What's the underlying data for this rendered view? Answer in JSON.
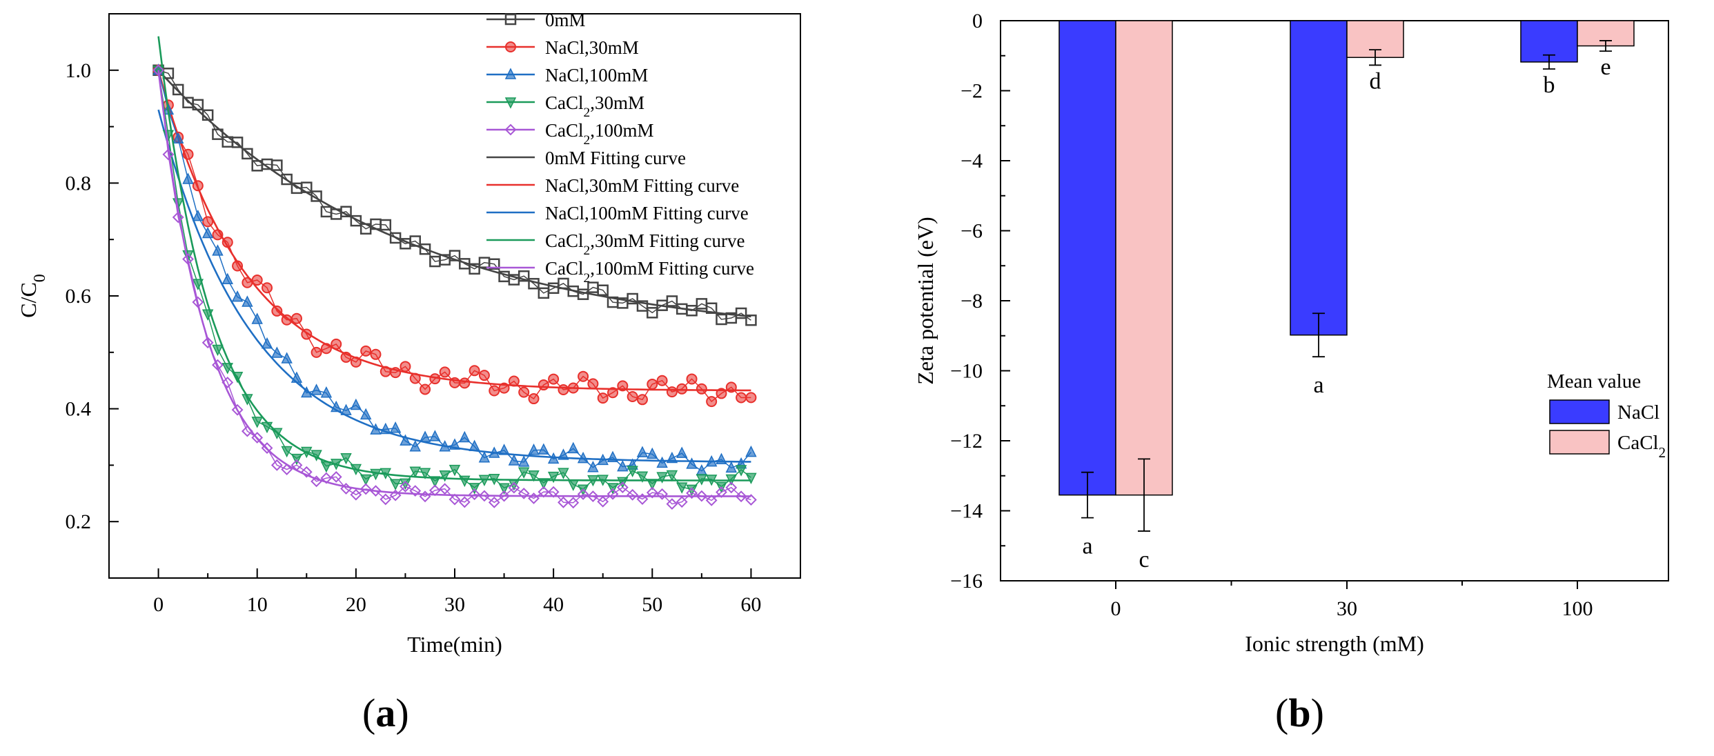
{
  "panels": {
    "a_label_open": "(",
    "a_label_letter": "a",
    "a_label_close": ")",
    "b_label_open": "(",
    "b_label_letter": "b",
    "b_label_close": ")"
  },
  "chart_data": [
    {
      "type": "scatter",
      "id": "a",
      "title": "",
      "xlabel": "Time(min)",
      "ylabel": "C/C0",
      "xlim": [
        -5,
        65
      ],
      "ylim": [
        0.1,
        1.1
      ],
      "xticks": [
        0,
        10,
        20,
        30,
        40,
        50,
        60
      ],
      "yticks": [
        0.2,
        0.4,
        0.6,
        0.8,
        1.0
      ],
      "ytick_labels": [
        "0.2",
        "0.4",
        "0.6",
        "0.8",
        "1.0"
      ],
      "series": [
        {
          "name": "0mM",
          "color": "#444444",
          "marker": "square",
          "C_inf": 0.52,
          "k": 0.04,
          "noise": 0.01,
          "fit": "0mM Fitting curve",
          "fit_c0": 1.0
        },
        {
          "name": "NaCl,30mM",
          "color": "#e8302c",
          "marker": "circle-half",
          "C_inf": 0.432,
          "k": 0.114,
          "noise": 0.015,
          "fit": "NaCl,30mM Fitting curve",
          "fit_c0": 1.0
        },
        {
          "name": "NaCl,100mM",
          "color": "#1f6fc4",
          "marker": "triangle-up",
          "C_inf": 0.305,
          "k": 0.106,
          "noise": 0.012,
          "fit": "NaCl,100mM Fitting curve",
          "fit_c0": 0.93
        },
        {
          "name": "CaCl2,30mM",
          "color": "#1a9a5a",
          "marker": "triangle-down",
          "C_inf": 0.273,
          "k": 0.185,
          "noise": 0.012,
          "fit": "CaCl2,30mM Fitting curve",
          "fit_c0": 1.06
        },
        {
          "name": "CaCl2,100mM",
          "color": "#a857d6",
          "marker": "diamond",
          "C_inf": 0.245,
          "k": 0.2,
          "noise": 0.01,
          "fit": "CaCl2,100mM Fitting curve",
          "fit_c0": 1.0
        }
      ],
      "legend": {
        "placement": "top-right",
        "entries": [
          {
            "main": "0mM",
            "sub": "",
            "rest": "",
            "kind": "marker",
            "series": 0
          },
          {
            "main": "NaCl,30mM",
            "sub": "",
            "rest": "",
            "kind": "marker",
            "series": 1
          },
          {
            "main": "NaCl,100mM",
            "sub": "",
            "rest": "",
            "kind": "marker",
            "series": 2
          },
          {
            "main": "CaCl",
            "sub": "2",
            "rest": ",30mM",
            "kind": "marker",
            "series": 3
          },
          {
            "main": "CaCl",
            "sub": "2",
            "rest": ",100mM",
            "kind": "marker",
            "series": 4
          },
          {
            "main": "0mM Fitting curve",
            "sub": "",
            "rest": "",
            "kind": "line",
            "series": 0
          },
          {
            "main": "NaCl,30mM Fitting curve",
            "sub": "",
            "rest": "",
            "kind": "line",
            "series": 1
          },
          {
            "main": "NaCl,100mM Fitting curve",
            "sub": "",
            "rest": "",
            "kind": "line",
            "series": 2
          },
          {
            "main": "CaCl",
            "sub": "2",
            "rest": ",30mM Fitting curve",
            "kind": "line",
            "series": 3
          },
          {
            "main": "CaCl",
            "sub": "2",
            "rest": ",100mM Fitting curve",
            "kind": "line",
            "series": 4
          }
        ]
      }
    },
    {
      "type": "bar",
      "id": "b",
      "title": "",
      "xlabel": "Ionic strength (mM)",
      "ylabel": "Zeta potential (eV)",
      "ylim": [
        -16,
        0
      ],
      "yticks": [
        0,
        -2,
        -4,
        -6,
        -8,
        -10,
        -12,
        -14,
        -16
      ],
      "ytick_labels": [
        "0",
        "−2",
        "−4",
        "−6",
        "−8",
        "−10",
        "−12",
        "−14",
        "−16"
      ],
      "categories": [
        "0",
        "30",
        "100"
      ],
      "series": [
        {
          "name": "NaCl",
          "color": "#3a3cff",
          "values": [
            -13.55,
            -8.98,
            -1.18
          ],
          "errors": [
            0.65,
            0.62,
            0.2
          ],
          "letters": [
            "a",
            "a",
            "b"
          ]
        },
        {
          "name": "CaCl2",
          "color": "#f9c3c3",
          "values": [
            -13.55,
            -1.05,
            -0.72
          ],
          "errors": [
            1.03,
            0.22,
            0.15
          ],
          "letters": [
            "c",
            "d",
            "e"
          ]
        }
      ],
      "legend": {
        "title": "Mean value",
        "placement": "right",
        "entries": [
          {
            "main": "NaCl",
            "sub": "",
            "series": 0
          },
          {
            "main": "CaCl",
            "sub": "2",
            "series": 1
          }
        ]
      }
    }
  ]
}
